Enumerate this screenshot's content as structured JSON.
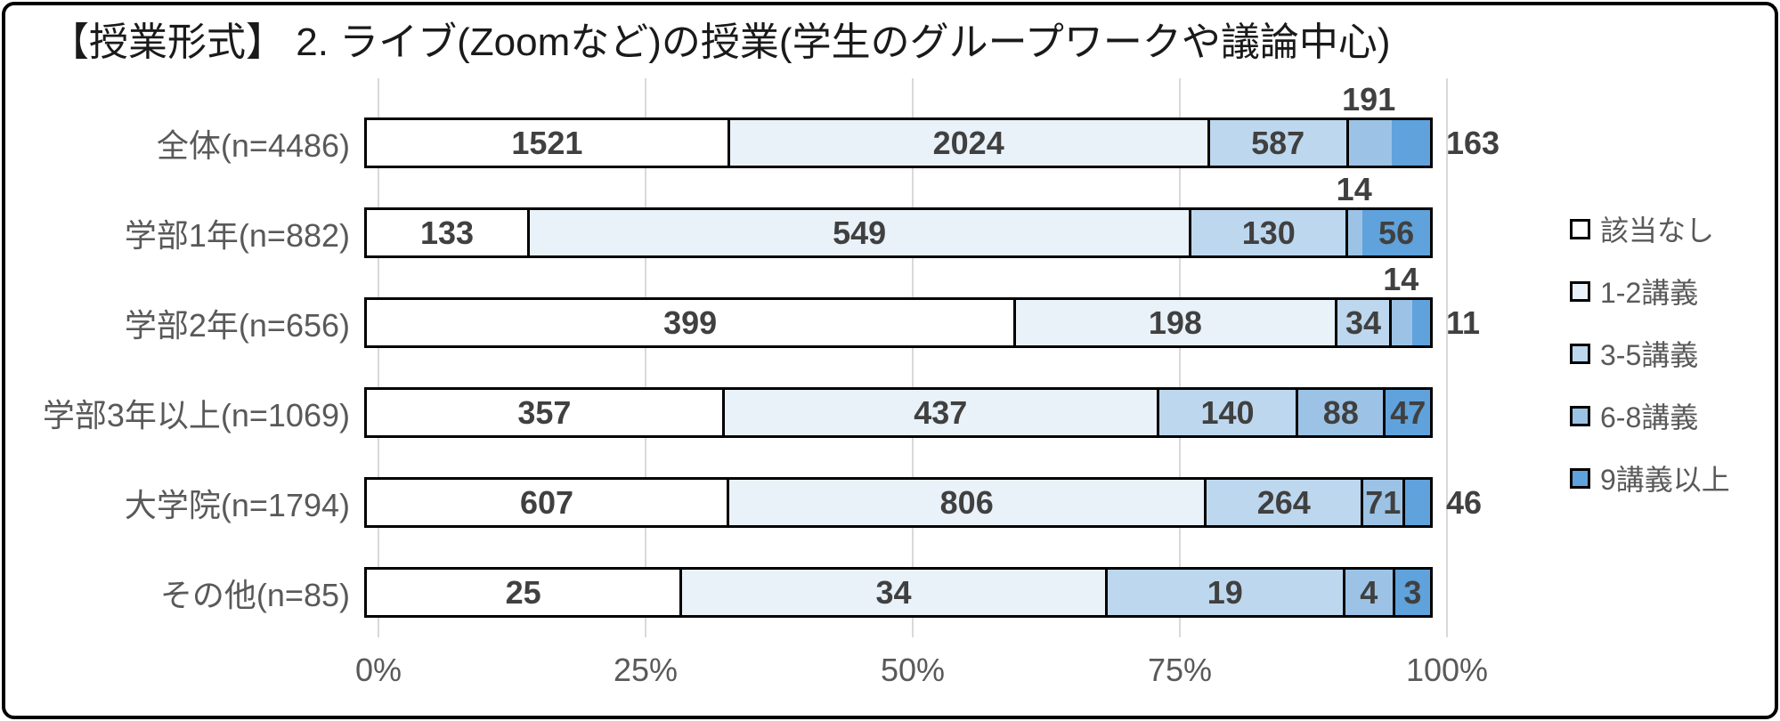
{
  "title": "【授業形式】 2. ライブ(Zoomなど)の授業(学生のグループワークや議論中心)",
  "x_axis": {
    "ticks": [
      "0%",
      "25%",
      "50%",
      "75%",
      "100%"
    ]
  },
  "legend": [
    "該当なし",
    "1-2講義",
    "3-5講義",
    "6-8講義",
    "9講義以上"
  ],
  "colors": {
    "segments": [
      "#FFFFFF",
      "#E9F1F9",
      "#BDD7EE",
      "#9CC3E5",
      "#5FA2DC"
    ],
    "segment_border": "#000000",
    "grid_line": "#D9D9D9",
    "axis_text": "#595959",
    "value_text": "#404040",
    "title_text": "#1A1A1A"
  },
  "chart_data": {
    "type": "bar",
    "orientation": "horizontal",
    "stacked": true,
    "percent_axis": true,
    "xlim": [
      0,
      100
    ],
    "grid": true,
    "legend_position": "right",
    "title": "【授業形式】 2. ライブ(Zoomなど)の授業(学生のグループワークや議論中心)",
    "categories": [
      "全体(n=4486)",
      "学部1年(n=882)",
      "学部2年(n=656)",
      "学部3年以上(n=1069)",
      "大学院(n=1794)",
      "その他(n=85)"
    ],
    "n_values": [
      4486,
      882,
      656,
      1069,
      1794,
      85
    ],
    "series": [
      {
        "name": "該当なし",
        "values": [
          1521,
          133,
          399,
          357,
          607,
          25
        ]
      },
      {
        "name": "1-2講義",
        "values": [
          2024,
          549,
          198,
          437,
          806,
          34
        ]
      },
      {
        "name": "3-5講義",
        "values": [
          587,
          130,
          34,
          140,
          264,
          19
        ]
      },
      {
        "name": "6-8講義",
        "values": [
          191,
          14,
          14,
          88,
          71,
          4
        ]
      },
      {
        "name": "9講義以上",
        "values": [
          163,
          56,
          11,
          47,
          46,
          3
        ]
      }
    ],
    "value_label_positions": [
      [
        "inside",
        "inside",
        "inside",
        "above",
        "outside"
      ],
      [
        "inside",
        "inside",
        "inside",
        "above",
        "inside"
      ],
      [
        "inside",
        "inside",
        "inside",
        "above",
        "outside"
      ],
      [
        "inside",
        "inside",
        "inside",
        "inside",
        "inside"
      ],
      [
        "inside",
        "inside",
        "inside",
        "inside",
        "outside"
      ],
      [
        "inside",
        "inside",
        "inside",
        "inside",
        "inside"
      ]
    ]
  }
}
